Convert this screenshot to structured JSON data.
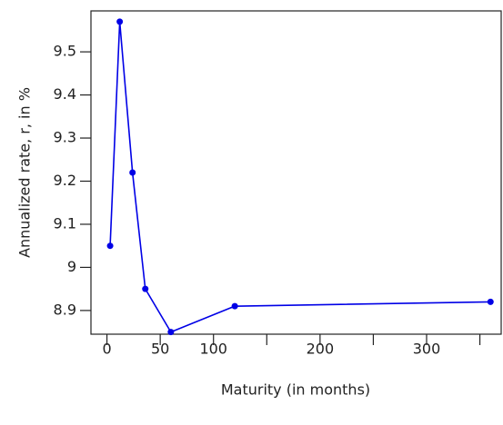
{
  "chart_data": {
    "type": "line",
    "x_label": "Maturity (in months)",
    "y_label": "Annualized rate, r, in %",
    "x": [
      3,
      12,
      24,
      36,
      60,
      120,
      360
    ],
    "series": [
      {
        "color": "#0000e6",
        "values": [
          9.05,
          9.57,
          9.22,
          8.95,
          8.85,
          8.91,
          8.92
        ]
      }
    ],
    "xlim": [
      -15,
      370
    ],
    "ylim": [
      8.845,
      9.595
    ],
    "xticks": [
      0,
      50,
      100,
      200,
      300
    ],
    "xminorticks": [
      150,
      250,
      350
    ],
    "yticks": [
      8.9,
      9.0,
      9.1,
      9.2,
      9.3,
      9.4,
      9.5
    ]
  }
}
